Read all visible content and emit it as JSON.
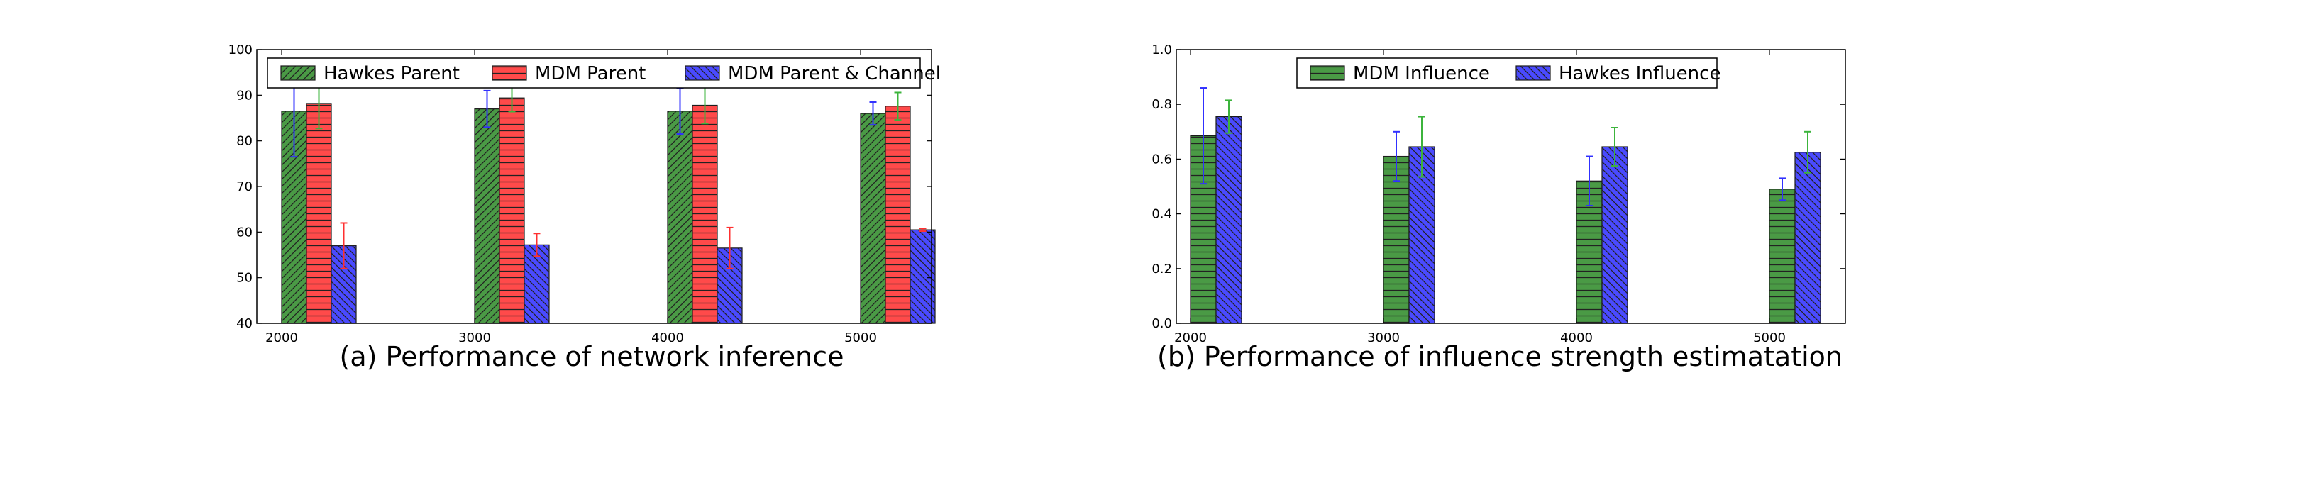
{
  "colors": {
    "green": "#4a9a45",
    "red": "#ff4a4a",
    "blue": "#4a4aff",
    "err_green": "#3cb43c",
    "err_red": "#ff3030",
    "err_blue": "#3030ff"
  },
  "chart_data": [
    {
      "type": "bar",
      "caption": "(a) Performance of network inference",
      "categories": [
        "2000",
        "3000",
        "4000",
        "5000"
      ],
      "ylim": [
        40,
        100
      ],
      "yticks": [
        "40",
        "50",
        "60",
        "70",
        "80",
        "90",
        "100"
      ],
      "legend_position": "top",
      "series": [
        {
          "name": "Hawkes Parent",
          "values": [
            86.5,
            87.0,
            86.5,
            86.0
          ],
          "err": [
            10.0,
            4.0,
            5.0,
            2.5
          ],
          "color": "green",
          "err_color": "err_blue",
          "hatch": "diag-right"
        },
        {
          "name": "MDM Parent",
          "values": [
            88.2,
            89.4,
            87.8,
            87.6
          ],
          "err": [
            5.5,
            3.0,
            4.0,
            3.0
          ],
          "color": "red",
          "err_color": "err_green",
          "hatch": "horizontal"
        },
        {
          "name": "MDM Parent & Channel",
          "values": [
            57.0,
            57.2,
            56.5,
            60.5
          ],
          "err": [
            5.0,
            2.5,
            4.5,
            0.3
          ],
          "color": "blue",
          "err_color": "err_red",
          "hatch": "diag-left"
        }
      ]
    },
    {
      "type": "bar",
      "caption": "(b) Performance of influence strength estimatation",
      "categories": [
        "2000",
        "3000",
        "4000",
        "5000"
      ],
      "ylim": [
        0.0,
        1.0
      ],
      "yticks": [
        "0.0",
        "0.2",
        "0.4",
        "0.6",
        "0.8",
        "1.0"
      ],
      "legend_position": "top",
      "series": [
        {
          "name": "MDM Influence",
          "values": [
            0.685,
            0.61,
            0.52,
            0.49
          ],
          "err": [
            0.175,
            0.09,
            0.09,
            0.04
          ],
          "color": "green",
          "err_color": "err_blue",
          "hatch": "horizontal"
        },
        {
          "name": "Hawkes Influence",
          "values": [
            0.755,
            0.645,
            0.645,
            0.625
          ],
          "err": [
            0.06,
            0.11,
            0.07,
            0.075
          ],
          "color": "blue",
          "err_color": "err_green",
          "hatch": "diag-left"
        }
      ]
    }
  ]
}
